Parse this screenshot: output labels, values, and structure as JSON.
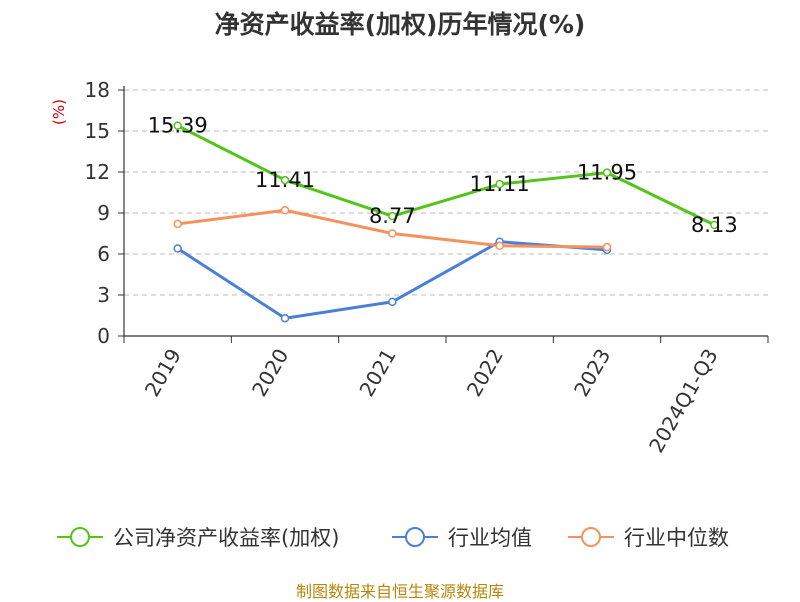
{
  "chart_title": "净资产收益率(加权)历年情况(%)",
  "unit_label": "(%)",
  "source": "制图数据来自恒生聚源数据库",
  "chart_data": {
    "type": "line",
    "title": "净资产收益率(加权)历年情况(%)",
    "ylabel": "(%)",
    "categories": [
      "2019",
      "2020",
      "2021",
      "2022",
      "2023",
      "2024Q1-Q3"
    ],
    "yticks": [
      "0",
      "3",
      "6",
      "9",
      "12",
      "15",
      "18"
    ],
    "ylim": [
      0,
      18
    ],
    "grid": true,
    "legend_position": "bottom",
    "series": [
      {
        "name": "公司净资产收益率(加权)",
        "color": "#52c41a",
        "values": [
          15.39,
          11.41,
          8.77,
          11.11,
          11.95,
          8.13
        ],
        "labels": [
          "15.39",
          "11.41",
          "8.77",
          "11.11",
          "11.95",
          "8.13"
        ],
        "show_labels": true
      },
      {
        "name": "行业均值",
        "color": "#4a7fd8",
        "values": [
          6.4,
          1.3,
          2.5,
          6.9,
          6.3,
          null
        ],
        "show_labels": false
      },
      {
        "name": "行业中位数",
        "color": "#f4915c",
        "values": [
          8.2,
          9.2,
          7.5,
          6.6,
          6.5,
          null
        ],
        "show_labels": false
      }
    ]
  }
}
